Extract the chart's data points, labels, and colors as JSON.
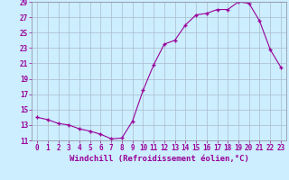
{
  "x": [
    0,
    1,
    2,
    3,
    4,
    5,
    6,
    7,
    8,
    9,
    10,
    11,
    12,
    13,
    14,
    15,
    16,
    17,
    18,
    19,
    20,
    21,
    22,
    23
  ],
  "y": [
    14.0,
    13.7,
    13.2,
    13.0,
    12.5,
    12.2,
    11.8,
    11.2,
    11.3,
    13.5,
    17.5,
    20.8,
    23.5,
    24.0,
    26.0,
    27.3,
    27.5,
    28.0,
    28.0,
    29.0,
    28.8,
    26.5,
    22.8,
    20.5
  ],
  "xlabel": "Windchill (Refroidissement éolien,°C)",
  "line_color": "#990099",
  "marker_color": "#990099",
  "bg_color": "#cceeff",
  "grid_color": "#aabbcc",
  "ylim": [
    11,
    29
  ],
  "xlim": [
    -0.5,
    23.5
  ],
  "yticks": [
    11,
    13,
    15,
    17,
    19,
    21,
    23,
    25,
    27,
    29
  ],
  "xticks": [
    0,
    1,
    2,
    3,
    4,
    5,
    6,
    7,
    8,
    9,
    10,
    11,
    12,
    13,
    14,
    15,
    16,
    17,
    18,
    19,
    20,
    21,
    22,
    23
  ],
  "tick_fontsize": 5.5,
  "label_fontsize": 6.5
}
